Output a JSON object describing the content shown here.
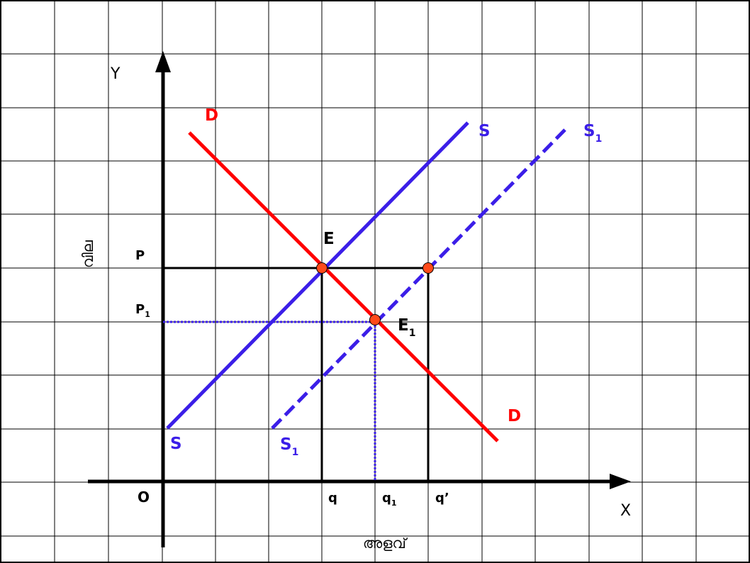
{
  "axes": {
    "y_letter": "Y",
    "x_letter": "X",
    "origin": "O",
    "y_title": "വില",
    "x_title": "അളവ്"
  },
  "price_labels": {
    "p": "P",
    "p1_base": "P",
    "p1_sub": "1"
  },
  "quantity_labels": {
    "q": "q",
    "q1_base": "q",
    "q1_sub": "1",
    "q_prime": "q’"
  },
  "curves": {
    "demand_top": "D",
    "demand_bottom": "D",
    "supply_top": "S",
    "supply_bottom": "S",
    "supply1_top_base": "S",
    "supply1_top_sub": "1",
    "supply1_bottom_base": "S",
    "supply1_bottom_sub": "1"
  },
  "points": {
    "e": "E",
    "e1_base": "E",
    "e1_sub": "1"
  },
  "colors": {
    "demand": "#ff0000",
    "supply": "#3b1ee8",
    "axis": "#000000",
    "grid": "#000000",
    "point_fill": "#ff4a1a"
  }
}
